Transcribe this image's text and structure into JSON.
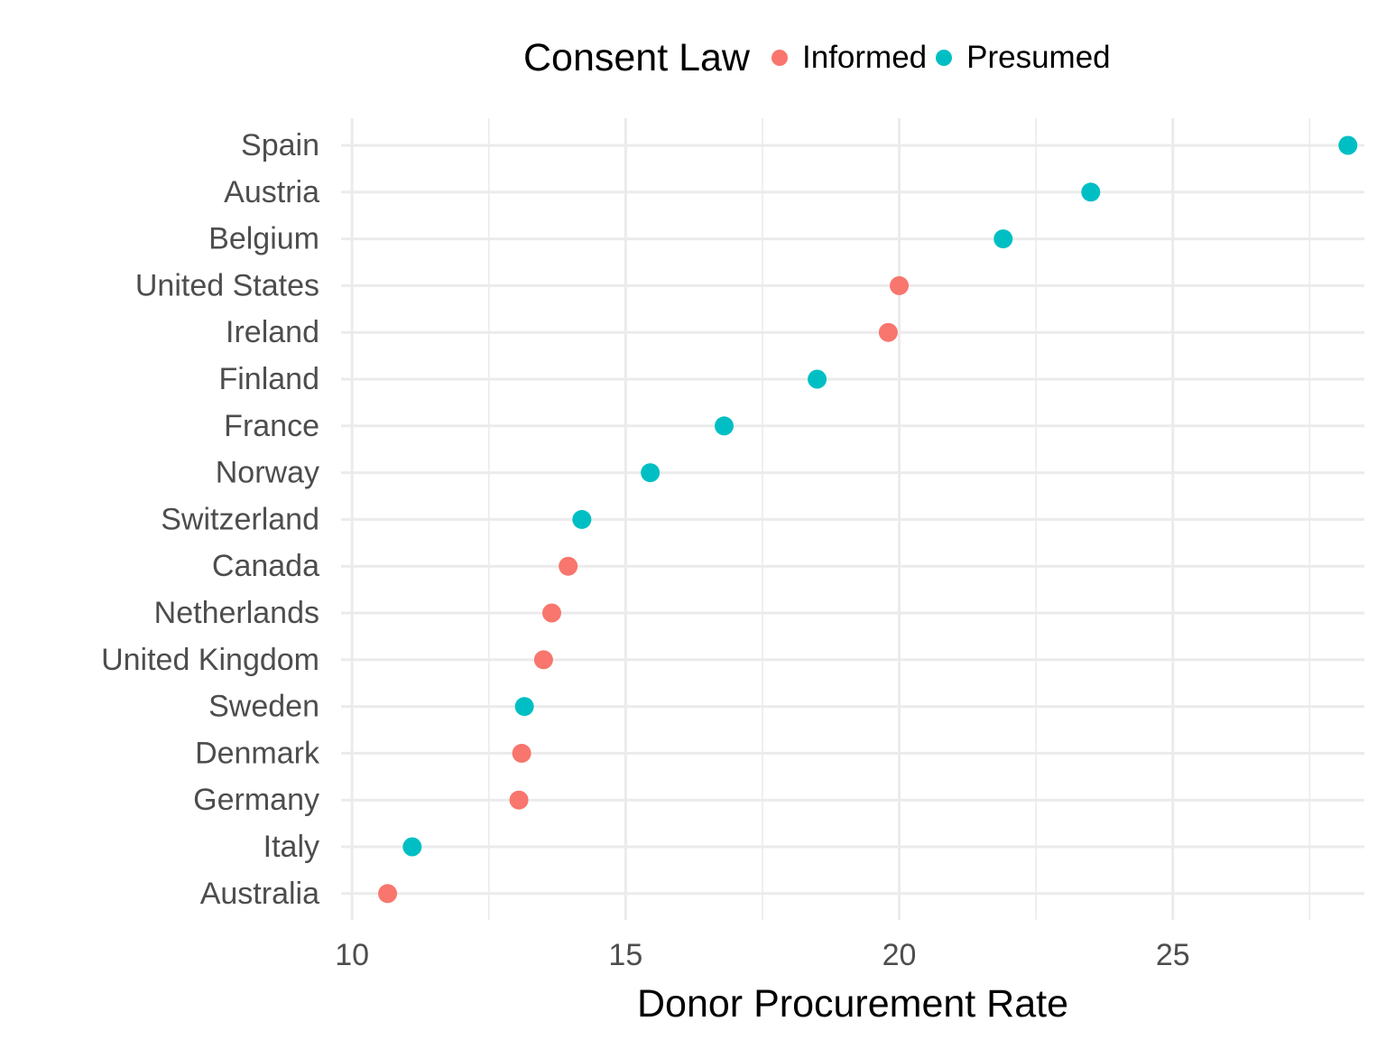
{
  "chart_data": {
    "type": "scatter",
    "xlabel": "Donor Procurement Rate",
    "ylabel": "",
    "xlim": [
      9.8,
      28.5
    ],
    "x_ticks": [
      10,
      15,
      20,
      25
    ],
    "grid": true,
    "legend": {
      "title": "Consent Law",
      "position": "top",
      "entries": [
        {
          "name": "Informed",
          "color": "#F8766D"
        },
        {
          "name": "Presumed",
          "color": "#00BFC4"
        }
      ]
    },
    "categories": [
      "Spain",
      "Austria",
      "Belgium",
      "United States",
      "Ireland",
      "Finland",
      "France",
      "Norway",
      "Switzerland",
      "Canada",
      "Netherlands",
      "United Kingdom",
      "Sweden",
      "Denmark",
      "Germany",
      "Italy",
      "Australia"
    ],
    "points": [
      {
        "country": "Spain",
        "value": 28.2,
        "law": "Presumed"
      },
      {
        "country": "Austria",
        "value": 23.5,
        "law": "Presumed"
      },
      {
        "country": "Belgium",
        "value": 21.9,
        "law": "Presumed"
      },
      {
        "country": "United States",
        "value": 20.0,
        "law": "Informed"
      },
      {
        "country": "Ireland",
        "value": 19.8,
        "law": "Informed"
      },
      {
        "country": "Finland",
        "value": 18.5,
        "law": "Presumed"
      },
      {
        "country": "France",
        "value": 16.8,
        "law": "Presumed"
      },
      {
        "country": "Norway",
        "value": 15.45,
        "law": "Presumed"
      },
      {
        "country": "Switzerland",
        "value": 14.2,
        "law": "Presumed"
      },
      {
        "country": "Canada",
        "value": 13.95,
        "law": "Informed"
      },
      {
        "country": "Netherlands",
        "value": 13.65,
        "law": "Informed"
      },
      {
        "country": "United Kingdom",
        "value": 13.5,
        "law": "Informed"
      },
      {
        "country": "Sweden",
        "value": 13.15,
        "law": "Presumed"
      },
      {
        "country": "Denmark",
        "value": 13.1,
        "law": "Informed"
      },
      {
        "country": "Germany",
        "value": 13.05,
        "law": "Informed"
      },
      {
        "country": "Italy",
        "value": 11.1,
        "law": "Presumed"
      },
      {
        "country": "Australia",
        "value": 10.65,
        "law": "Informed"
      }
    ]
  }
}
